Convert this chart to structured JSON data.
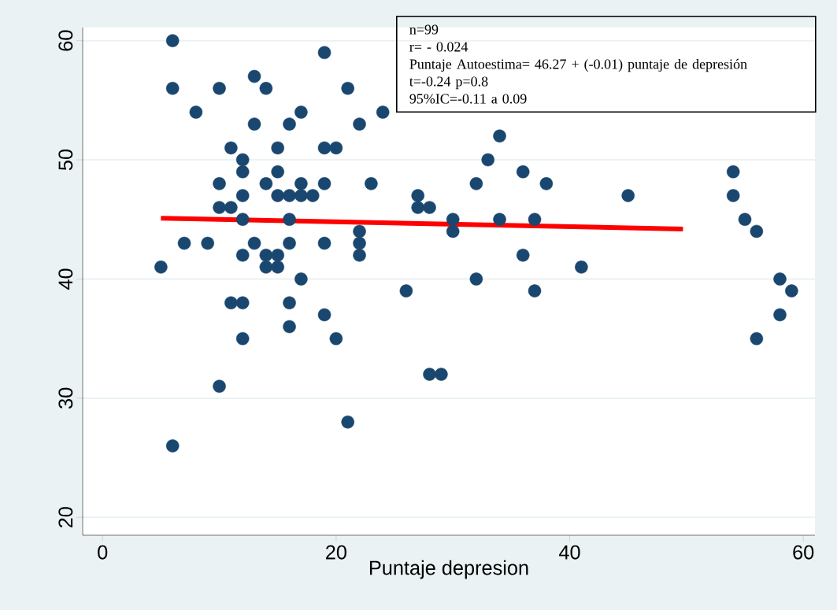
{
  "chart_data": {
    "type": "scatter",
    "xlabel": "Puntaje depresion",
    "grid": "y",
    "xlim": [
      -1.7,
      61
    ],
    "ylim": [
      18.5,
      61.1
    ],
    "xticks": [
      0,
      20,
      40,
      60
    ],
    "yticks": [
      20,
      30,
      40,
      50,
      60
    ],
    "series": [
      {
        "type": "scatter",
        "marker": "circle",
        "color": "#1a476f",
        "x": [
          5,
          6,
          6,
          6,
          7,
          8,
          9,
          10,
          10,
          10,
          10,
          11,
          11,
          11,
          12,
          12,
          12,
          12,
          12,
          12,
          12,
          13,
          13,
          13,
          14,
          14,
          14,
          14,
          15,
          15,
          15,
          15,
          15,
          16,
          16,
          16,
          16,
          16,
          16,
          17,
          17,
          17,
          17,
          18,
          19,
          19,
          19,
          19,
          19,
          20,
          20,
          21,
          21,
          22,
          22,
          22,
          22,
          23,
          24,
          26,
          27,
          27,
          28,
          28,
          29,
          30,
          30,
          32,
          32,
          33,
          34,
          34,
          36,
          36,
          37,
          37,
          38,
          41,
          45,
          54,
          54,
          55,
          56,
          56,
          58,
          58,
          59
        ],
        "values": [
          41,
          60,
          56,
          26,
          43,
          54,
          43,
          56,
          48,
          46,
          31,
          51,
          46,
          38,
          50,
          49,
          47,
          45,
          42,
          38,
          35,
          57,
          53,
          43,
          56,
          48,
          42,
          41,
          51,
          49,
          47,
          42,
          41,
          53,
          47,
          45,
          43,
          38,
          36,
          54,
          48,
          47,
          40,
          47,
          59,
          51,
          48,
          43,
          37,
          51,
          35,
          56,
          28,
          53,
          44,
          43,
          42,
          48,
          54,
          39,
          47,
          46,
          46,
          32,
          32,
          45,
          44,
          48,
          40,
          50,
          52,
          45,
          49,
          42,
          45,
          39,
          48,
          41,
          47,
          49,
          47,
          45,
          44,
          35,
          40,
          37,
          39
        ]
      },
      {
        "type": "line",
        "marker": "none",
        "color": "#ff0000",
        "x": [
          5,
          49.7
        ],
        "values": [
          45.1,
          44.2
        ]
      }
    ],
    "annotations": [
      "n=99",
      "r= - 0.024",
      "Puntaje Autoestima= 46.27 + (-0.01) puntaje de depresión",
      "t=-0.24 p=0.8",
      "95%IC=-0.11 a 0.09"
    ]
  }
}
